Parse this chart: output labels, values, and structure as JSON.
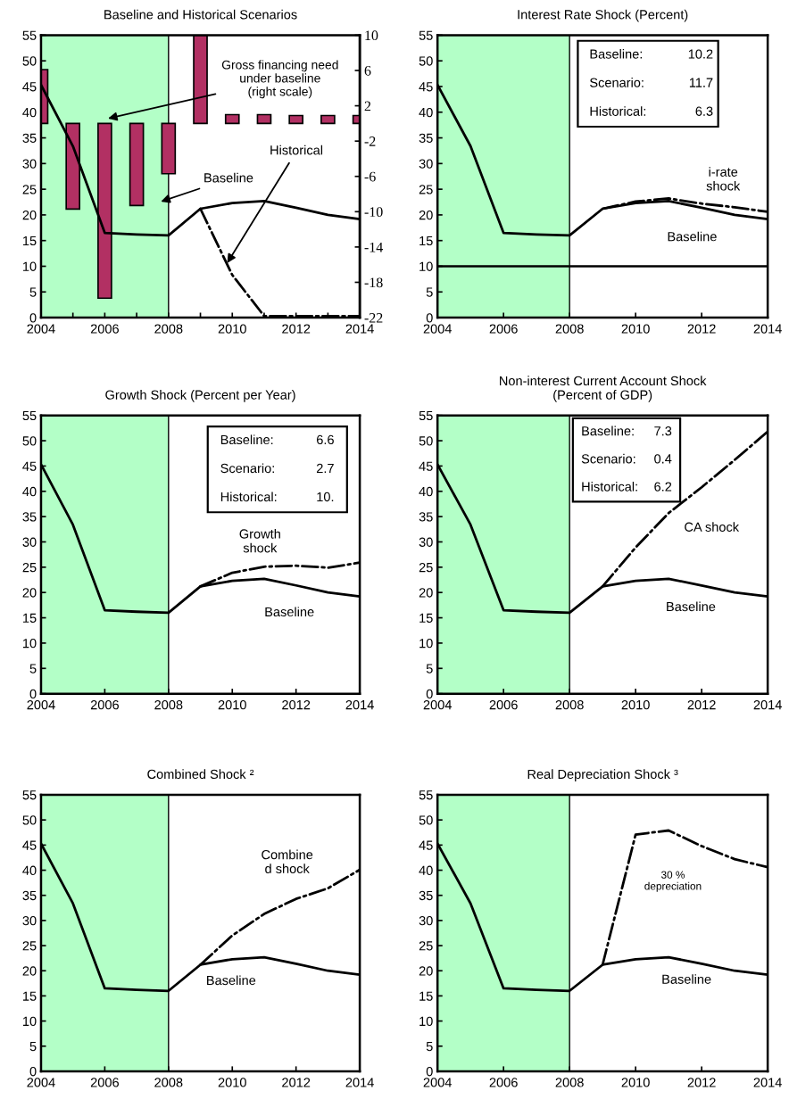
{
  "chart_data": [
    {
      "type": "line",
      "title": "Baseline and Historical Scenarios",
      "x": [
        2004,
        2005,
        2006,
        2007,
        2008,
        2009,
        2010,
        2011,
        2012,
        2013,
        2014
      ],
      "xlim": [
        2004,
        2014
      ],
      "xticks": [
        2004,
        {
          "value": 2005,
          "label": null
        },
        2006,
        {
          "value": 2007,
          "label": null
        },
        2008,
        {
          "value": 2009,
          "label": null
        },
        2010,
        {
          "value": 2011,
          "label": null
        },
        2012,
        {
          "value": 2013,
          "label": null
        },
        2014
      ],
      "ylim": [
        0,
        55
      ],
      "yticks": [
        0,
        5,
        10,
        15,
        20,
        25,
        30,
        35,
        40,
        45,
        50,
        55
      ],
      "y2lim": [
        -22,
        10
      ],
      "y2ticks": [
        -22,
        -18,
        -14,
        -10,
        -6,
        -2,
        2,
        6,
        10
      ],
      "bands": [
        {
          "axis": "x",
          "from": 2004,
          "to": 2008,
          "color": "#b3ffc7"
        }
      ],
      "ref_lines": [
        {
          "axis": "x",
          "value": 2008,
          "color": "#000000"
        }
      ],
      "series": [
        {
          "name": "Gross financing need\nunder baseline\n(right scale)",
          "type": "bar",
          "axis": "y2",
          "color": "#b23063",
          "values": [
            6.1,
            -9.7,
            -19.8,
            -9.3,
            -5.7,
            10,
            1.0,
            1.0,
            0.9,
            0.9,
            0.9
          ]
        },
        {
          "name": "Baseline",
          "type": "line",
          "color": "#000000",
          "line_style": "solid",
          "values": [
            45.3,
            33.4,
            16.5,
            16.2,
            16.0,
            21.2,
            22.3,
            22.7,
            21.4,
            20.0,
            19.2
          ]
        },
        {
          "name": "Historical",
          "type": "line",
          "color": "#000000",
          "line_style": "dashdot",
          "x": [
            2009,
            2010,
            2011,
            2012,
            2013,
            2014
          ],
          "values": [
            21.2,
            8.3,
            0.3,
            0.3,
            0.3,
            0.3
          ]
        }
      ]
    },
    {
      "type": "line",
      "title": "Interest Rate Shock (Percent)",
      "x": [
        2004,
        2005,
        2006,
        2007,
        2008,
        2009,
        2010,
        2011,
        2012,
        2013,
        2014
      ],
      "xlim": [
        2004,
        2014
      ],
      "xticks": [
        2004,
        2006,
        2008,
        2010,
        2012,
        2014
      ],
      "ylim": [
        0,
        55
      ],
      "yticks": [
        0,
        5,
        10,
        15,
        20,
        25,
        30,
        35,
        40,
        45,
        50,
        55
      ],
      "bands": [
        {
          "axis": "x",
          "from": 2004,
          "to": 2008,
          "color": "#b3ffc7"
        }
      ],
      "ref_lines": [
        {
          "axis": "x",
          "value": 2008,
          "color": "#000000"
        },
        {
          "axis": "y",
          "value": 10,
          "color": "#000000"
        }
      ],
      "annotations": [
        "Baseline:",
        "10.2",
        "Scenario:",
        "11.7",
        "Historical:",
        "6.3"
      ],
      "series": [
        {
          "name": "Baseline",
          "color": "#000000",
          "line_style": "solid",
          "values": [
            45.3,
            33.4,
            16.5,
            16.2,
            16.0,
            21.2,
            22.3,
            22.7,
            21.4,
            20.0,
            19.2
          ]
        },
        {
          "name": "i-rate\nshock",
          "color": "#000000",
          "line_style": "dashdot",
          "x": [
            2009,
            2010,
            2011,
            2012,
            2013,
            2014
          ],
          "values": [
            21.2,
            22.6,
            23.2,
            22.2,
            21.5,
            20.6
          ]
        }
      ]
    },
    {
      "type": "line",
      "title": "Growth Shock (Percent per Year)",
      "x": [
        2004,
        2005,
        2006,
        2007,
        2008,
        2009,
        2010,
        2011,
        2012,
        2013,
        2014
      ],
      "xlim": [
        2004,
        2014
      ],
      "xticks": [
        2004,
        2006,
        2008,
        2010,
        2012,
        2014
      ],
      "ylim": [
        0,
        55
      ],
      "yticks": [
        0,
        5,
        10,
        15,
        20,
        25,
        30,
        35,
        40,
        45,
        50,
        55
      ],
      "bands": [
        {
          "axis": "x",
          "from": 2004,
          "to": 2008,
          "color": "#b3ffc7"
        }
      ],
      "ref_lines": [
        {
          "axis": "x",
          "value": 2008,
          "color": "#000000"
        }
      ],
      "annotations": [
        "Baseline:",
        "6.6",
        "Scenario:",
        "2.7",
        "Historical:",
        "10."
      ],
      "series": [
        {
          "name": "Baseline",
          "color": "#000000",
          "line_style": "solid",
          "values": [
            45.3,
            33.4,
            16.5,
            16.2,
            16.0,
            21.2,
            22.3,
            22.7,
            21.4,
            20.0,
            19.2
          ]
        },
        {
          "name": "Growth\nshock",
          "color": "#000000",
          "line_style": "dashdot",
          "x": [
            2009,
            2010,
            2011,
            2012,
            2013,
            2014
          ],
          "values": [
            21.2,
            23.9,
            25.1,
            25.3,
            24.9,
            25.9
          ]
        }
      ]
    },
    {
      "type": "line",
      "title": "Non-interest Current Account Shock\n(Percent of GDP)",
      "x": [
        2004,
        2005,
        2006,
        2007,
        2008,
        2009,
        2010,
        2011,
        2012,
        2013,
        2014
      ],
      "xlim": [
        2004,
        2014
      ],
      "xticks": [
        2004,
        2006,
        2008,
        2010,
        2012,
        2014
      ],
      "ylim": [
        0,
        55
      ],
      "yticks": [
        0,
        5,
        10,
        15,
        20,
        25,
        30,
        35,
        40,
        45,
        50,
        55
      ],
      "bands": [
        {
          "axis": "x",
          "from": 2004,
          "to": 2008,
          "color": "#b3ffc7"
        }
      ],
      "ref_lines": [
        {
          "axis": "x",
          "value": 2008,
          "color": "#000000"
        }
      ],
      "annotations": [
        "Baseline:",
        "7.3",
        "Scenario:",
        "0.4",
        "Historical:",
        "6.2"
      ],
      "series": [
        {
          "name": "Baseline",
          "color": "#000000",
          "line_style": "solid",
          "values": [
            45.3,
            33.4,
            16.5,
            16.2,
            16.0,
            21.2,
            22.3,
            22.7,
            21.4,
            20.0,
            19.2
          ]
        },
        {
          "name": "CA shock",
          "color": "#000000",
          "line_style": "dashdot",
          "x": [
            2009,
            2010,
            2011,
            2012,
            2013,
            2014
          ],
          "values": [
            21.2,
            28.9,
            35.7,
            40.8,
            46.2,
            51.8
          ]
        }
      ]
    },
    {
      "type": "line",
      "title": "Combined Shock ²",
      "x": [
        2004,
        2005,
        2006,
        2007,
        2008,
        2009,
        2010,
        2011,
        2012,
        2013,
        2014
      ],
      "xlim": [
        2004,
        2014
      ],
      "xticks": [
        2004,
        2006,
        2008,
        2010,
        2012,
        2014
      ],
      "ylim": [
        0,
        55
      ],
      "yticks": [
        0,
        5,
        10,
        15,
        20,
        25,
        30,
        35,
        40,
        45,
        50,
        55
      ],
      "bands": [
        {
          "axis": "x",
          "from": 2004,
          "to": 2008,
          "color": "#b3ffc7"
        }
      ],
      "ref_lines": [
        {
          "axis": "x",
          "value": 2008,
          "color": "#000000"
        }
      ],
      "series": [
        {
          "name": "Baseline",
          "color": "#000000",
          "line_style": "solid",
          "values": [
            45.3,
            33.4,
            16.5,
            16.2,
            16.0,
            21.2,
            22.3,
            22.7,
            21.4,
            20.0,
            19.2
          ]
        },
        {
          "name": "Combine\nd shock",
          "color": "#000000",
          "line_style": "dashdot",
          "x": [
            2009,
            2010,
            2011,
            2012,
            2013,
            2014
          ],
          "values": [
            21.2,
            27.0,
            31.3,
            34.3,
            36.4,
            40.1
          ]
        }
      ]
    },
    {
      "type": "line",
      "title": "Real Depreciation Shock ³",
      "x": [
        2004,
        2005,
        2006,
        2007,
        2008,
        2009,
        2010,
        2011,
        2012,
        2013,
        2014
      ],
      "xlim": [
        2004,
        2014
      ],
      "xticks": [
        2004,
        2006,
        2008,
        2010,
        2012,
        2014
      ],
      "ylim": [
        0,
        55
      ],
      "yticks": [
        0,
        5,
        10,
        15,
        20,
        25,
        30,
        35,
        40,
        45,
        50,
        55
      ],
      "bands": [
        {
          "axis": "x",
          "from": 2004,
          "to": 2008,
          "color": "#b3ffc7"
        }
      ],
      "ref_lines": [
        {
          "axis": "x",
          "value": 2008,
          "color": "#000000"
        }
      ],
      "series": [
        {
          "name": "Baseline",
          "color": "#000000",
          "line_style": "solid",
          "values": [
            45.3,
            33.4,
            16.5,
            16.2,
            16.0,
            21.2,
            22.3,
            22.7,
            21.4,
            20.0,
            19.2
          ]
        },
        {
          "name": "30 %\ndepreciation",
          "color": "#000000",
          "line_style": "dashdot",
          "x": [
            2009,
            2010,
            2011,
            2012,
            2013,
            2014
          ],
          "values": [
            21.2,
            47.1,
            47.9,
            44.8,
            42.2,
            40.6
          ]
        }
      ]
    }
  ]
}
